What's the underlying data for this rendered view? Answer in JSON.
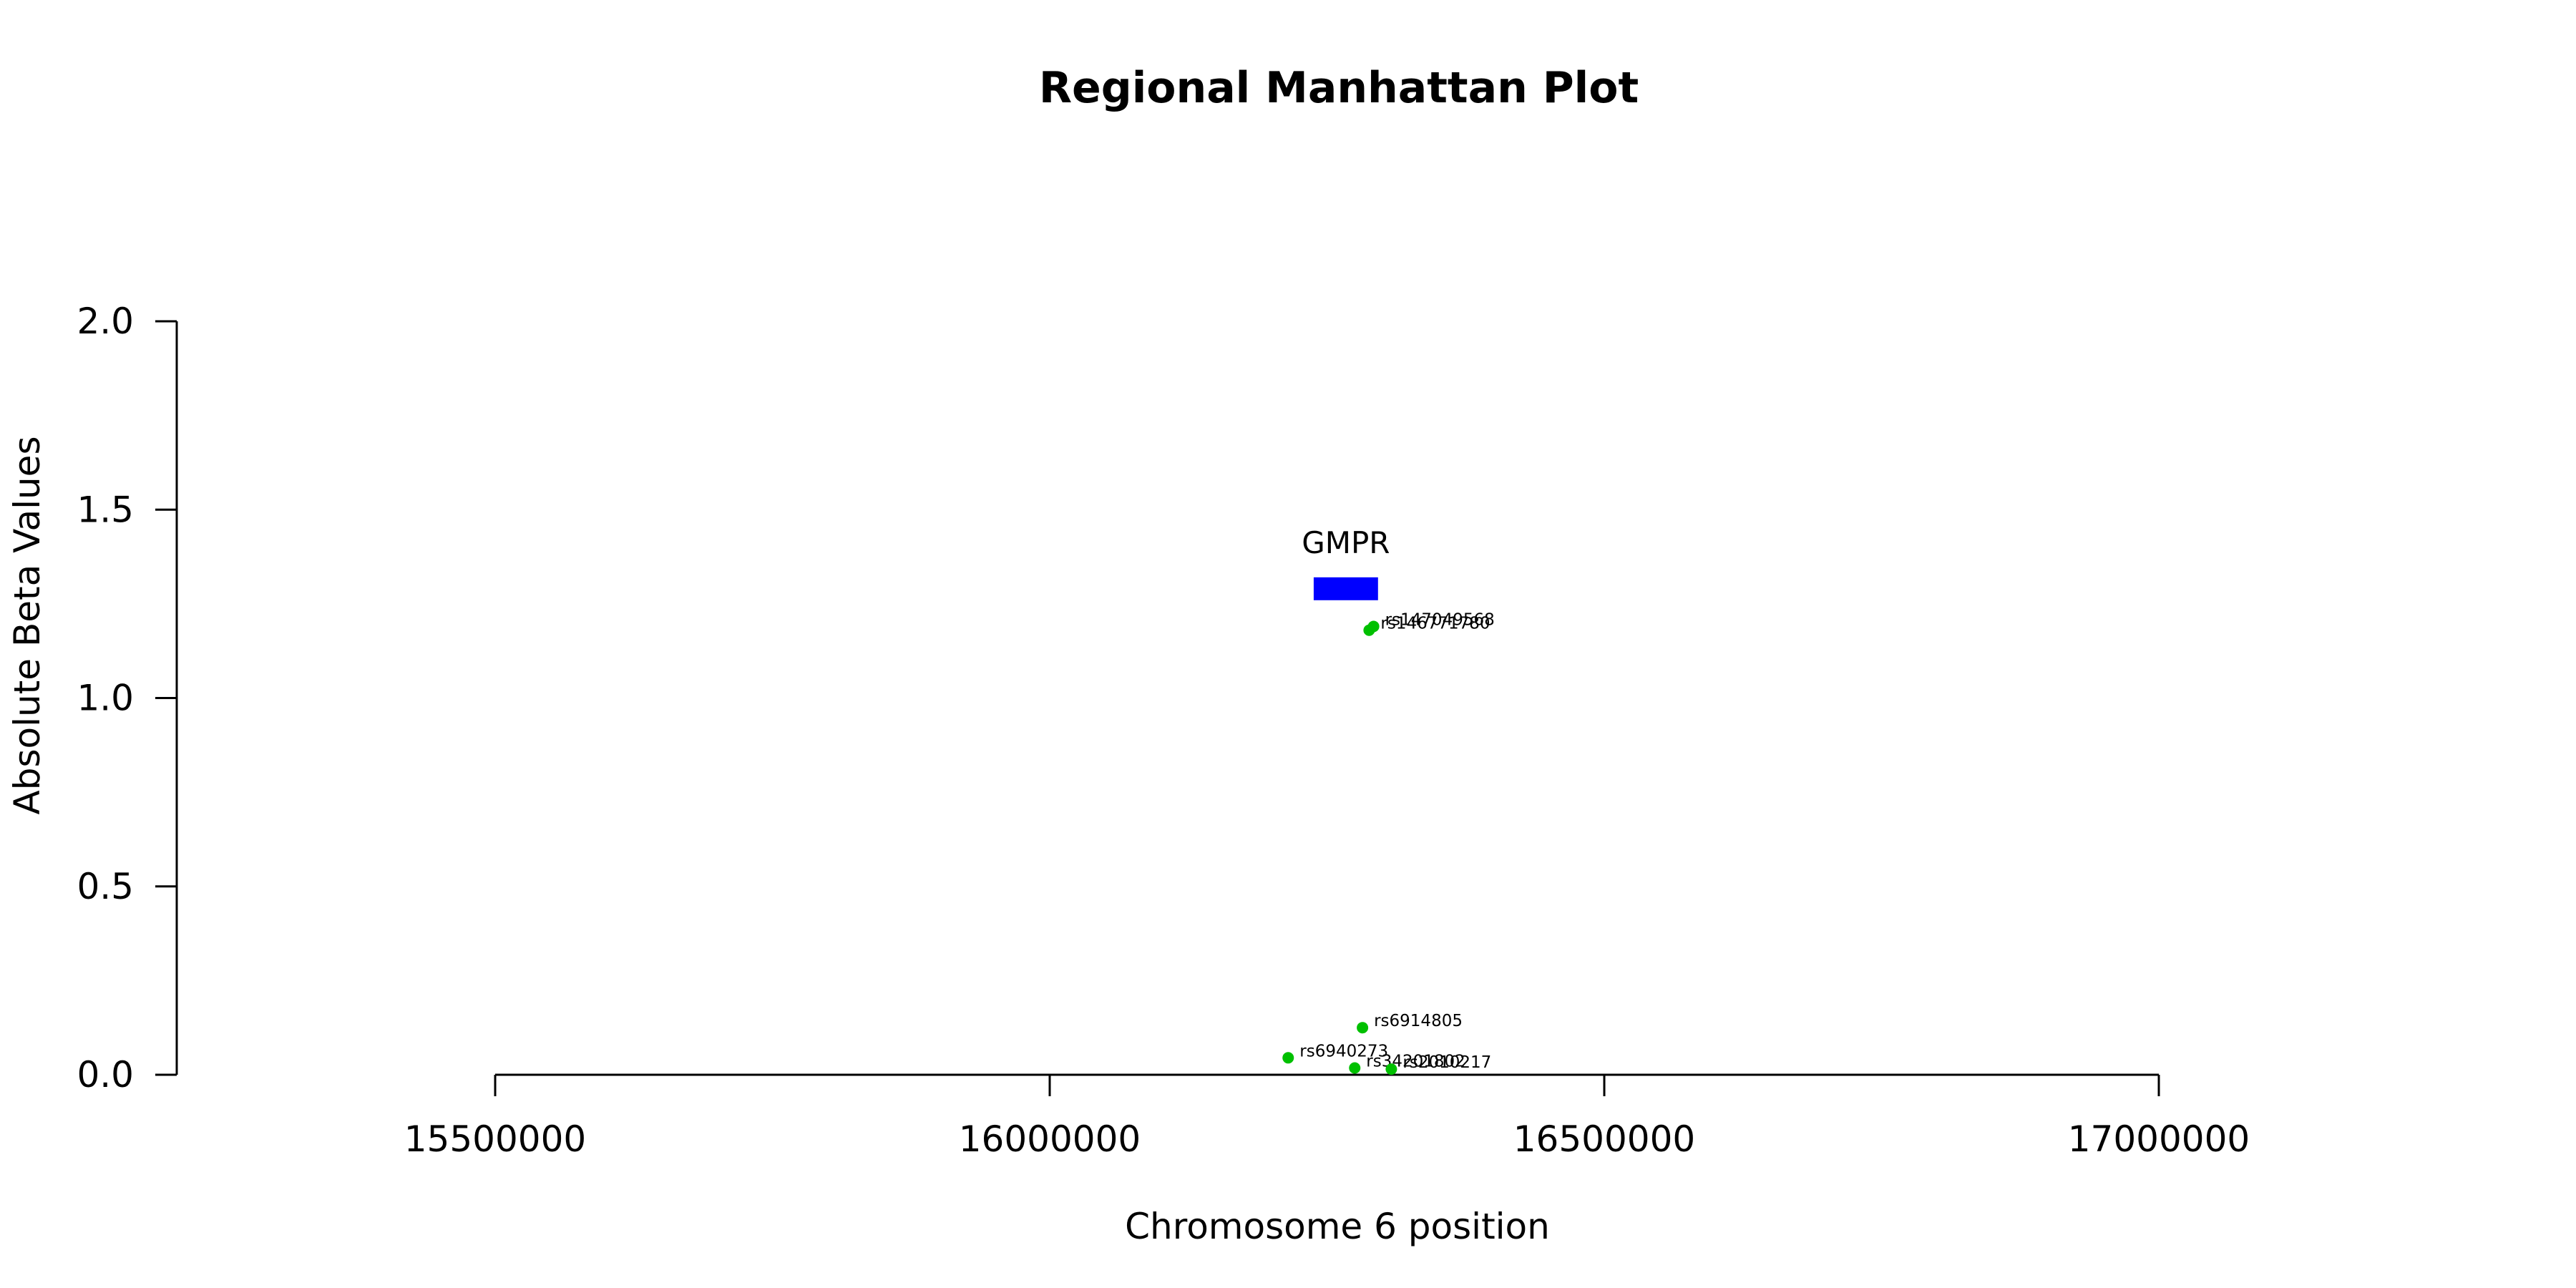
{
  "chart_data": {
    "type": "scatter",
    "title": "Regional Manhattan Plot",
    "xlabel": "Chromosome 6 position",
    "ylabel": "Absolute Beta Values",
    "xlim": [
      15500000,
      17000000
    ],
    "ylim": [
      0,
      2.0
    ],
    "x_ticks": [
      15500000,
      16000000,
      16500000,
      17000000
    ],
    "x_tick_labels": [
      "15500000",
      "16000000",
      "16500000",
      "17000000"
    ],
    "y_ticks": [
      0,
      0.5,
      1.0,
      1.5,
      2.0
    ],
    "y_tick_labels": [
      "0.0",
      "0.5",
      "1.0",
      "1.5",
      "2.0"
    ],
    "grid": false,
    "point_color": "#00C000",
    "points": [
      {
        "x": 16292000,
        "y": 1.19,
        "label": "rs147049568"
      },
      {
        "x": 16288000,
        "y": 1.18,
        "label": "rs146771780"
      },
      {
        "x": 16282000,
        "y": 0.125,
        "label": "rs6914805"
      },
      {
        "x": 16215000,
        "y": 0.045,
        "label": "rs6940273"
      },
      {
        "x": 16275000,
        "y": 0.018,
        "label": "rs34201802"
      },
      {
        "x": 16308000,
        "y": 0.015,
        "label": "rs2010217"
      }
    ],
    "genes": [
      {
        "name": "GMPR",
        "start": 16238000,
        "end": 16296000,
        "y": 1.29,
        "color": "#0000FF"
      }
    ]
  }
}
